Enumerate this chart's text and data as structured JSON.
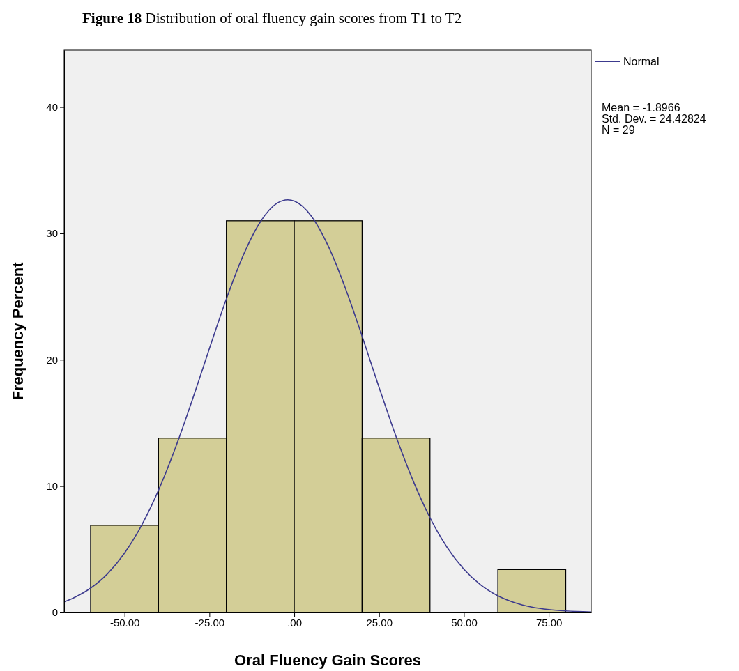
{
  "chart_data": {
    "type": "histogram",
    "title": "Figure 18 Distribution of oral fluency gain scores from T1 to T2",
    "xlabel": "Oral Fluency Gain Scores",
    "ylabel": "Frequency Percent",
    "bins": [
      -60,
      -40,
      -20,
      0,
      20,
      40,
      60,
      80
    ],
    "series": [
      {
        "color": "#d3ce97",
        "values": [
          6.9,
          13.8,
          31.0,
          31.0,
          13.8,
          0,
          3.4
        ]
      },
      {
        "type": "line",
        "name": "Normal",
        "color": "#3c3a8e",
        "x": [
          -67.8,
          -65,
          -60,
          -55,
          -50,
          -45,
          -40,
          -35,
          -30,
          -25,
          -20,
          -15,
          -10,
          -5,
          -1.9,
          0,
          5,
          10,
          15,
          20,
          25,
          30,
          35,
          40,
          45,
          50,
          55,
          60,
          65,
          70,
          75,
          80,
          87.5
        ],
        "values": [
          0.84,
          1.16,
          1.93,
          3.07,
          4.7,
          6.88,
          9.67,
          13.04,
          16.85,
          20.88,
          24.81,
          28.28,
          30.91,
          32.4,
          32.66,
          32.56,
          31.38,
          29.01,
          25.71,
          21.86,
          17.81,
          13.92,
          10.44,
          7.5,
          5.17,
          3.42,
          2.17,
          1.32,
          0.77,
          0.43,
          0.23,
          0.12,
          0.04
        ]
      }
    ],
    "xlim": [
      -67.8,
      87.5
    ],
    "xticks": [
      {
        "value": -50,
        "label": "-50.00"
      },
      {
        "value": -25,
        "label": "-25.00"
      },
      {
        "value": 0,
        "label": ".00"
      },
      {
        "value": 25,
        "label": "25.00"
      },
      {
        "value": 50,
        "label": "50.00"
      },
      {
        "value": 75,
        "label": "75.00"
      }
    ],
    "ylim": [
      0,
      44.5
    ],
    "yticks": [
      0,
      10,
      20,
      30,
      40
    ],
    "legend": "top right",
    "marker": "none",
    "line_style": "solid",
    "annotations": [
      "Mean = -1.8966",
      "Std. Dev. = 24.42824",
      "N = 29"
    ]
  }
}
